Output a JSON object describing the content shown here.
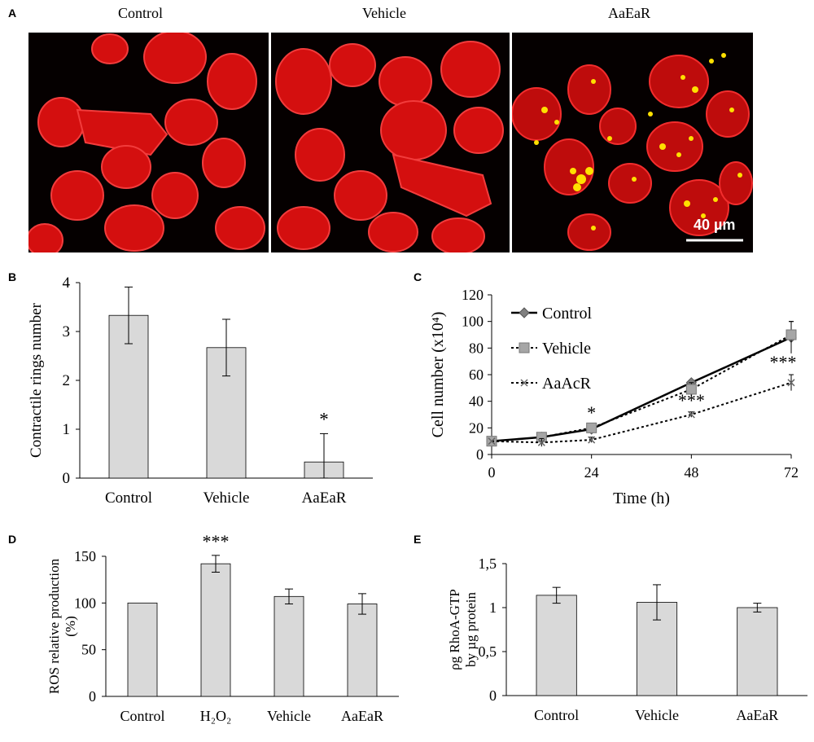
{
  "figure": {
    "panel_letters": [
      "A",
      "B",
      "C",
      "D",
      "E"
    ],
    "micrograph_labels": [
      "Control",
      "Vehicle",
      "AaEaR"
    ],
    "scale_bar_label": "40 µm",
    "colors": {
      "bar_fill": "#d9d9d9",
      "cell_stain": "#ff1a1a",
      "particle": "#ffe000",
      "background": "#000000"
    }
  },
  "chart_data": [
    {
      "panel": "B",
      "type": "bar",
      "categories": [
        "Control",
        "Vehicle",
        "AaEaR"
      ],
      "values": [
        3.33,
        2.67,
        0.33
      ],
      "errors": [
        0.58,
        0.58,
        0.58
      ],
      "annotations": [
        "",
        "",
        "*"
      ],
      "ylabel": "Contractile rings number",
      "ylim": [
        0,
        4
      ],
      "yticks": [
        "0",
        "1",
        "2",
        "3",
        "4"
      ]
    },
    {
      "panel": "C",
      "type": "line",
      "x": [
        0,
        12,
        24,
        48,
        72
      ],
      "xticks": [
        "0",
        "24",
        "48",
        "72"
      ],
      "xlabel": "Time (h)",
      "ylabel": "Cell number (x10⁴)",
      "ylim": [
        0,
        120
      ],
      "yticks": [
        "0",
        "20",
        "40",
        "60",
        "80",
        "100",
        "120"
      ],
      "series": [
        {
          "name": "Control",
          "values": [
            10,
            13,
            19,
            54,
            88
          ],
          "errors": [
            0,
            2,
            2,
            2,
            12
          ]
        },
        {
          "name": "Vehicle",
          "values": [
            10,
            13,
            20,
            49,
            90
          ],
          "errors": [
            0,
            3,
            2,
            5,
            10
          ]
        },
        {
          "name": "AaAcR",
          "values": [
            10,
            9,
            11,
            30,
            54
          ],
          "errors": [
            0,
            3,
            2,
            2,
            6
          ]
        }
      ],
      "annotations": [
        "*",
        "***",
        "***"
      ]
    },
    {
      "panel": "D",
      "type": "bar",
      "categories": [
        "Control",
        "H₂O₂",
        "Vehicle",
        "AaEaR"
      ],
      "values": [
        100,
        142,
        107,
        99
      ],
      "errors": [
        0,
        9,
        8,
        11
      ],
      "annotations": [
        "",
        "***",
        "",
        ""
      ],
      "ylabel": "ROS relative  production",
      "ylabel2": "(%)",
      "ylim": [
        0,
        150
      ],
      "yticks": [
        "0",
        "50",
        "100",
        "150"
      ]
    },
    {
      "panel": "E",
      "type": "bar",
      "categories": [
        "Control",
        "Vehicle",
        "AaEaR"
      ],
      "values": [
        1.14,
        1.06,
        1.0
      ],
      "errors": [
        0.09,
        0.2,
        0.05
      ],
      "ylabel": "ρg RhoA-GTP",
      "ylabel2": "by µg protein",
      "ylim": [
        0,
        1.5
      ],
      "yticks": [
        "0",
        "0,5",
        "1",
        "1,5"
      ]
    }
  ]
}
